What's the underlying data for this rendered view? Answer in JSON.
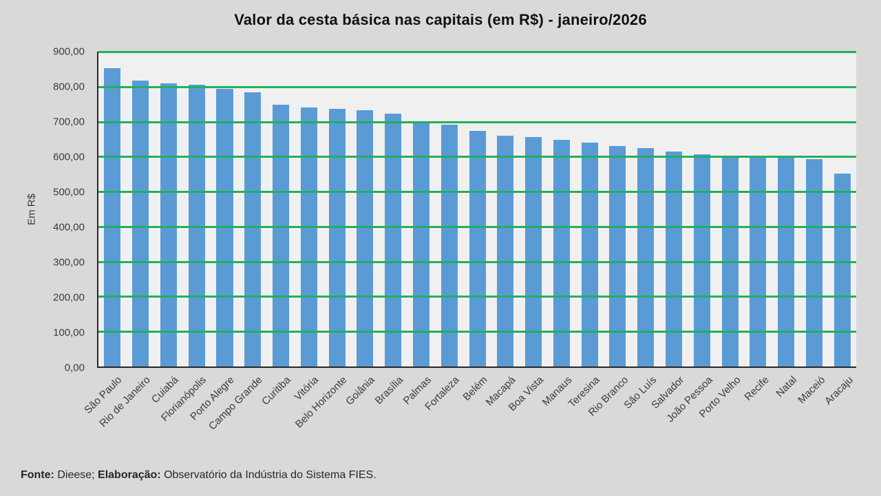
{
  "page": {
    "background_color": "#d9d9d9",
    "plot_background_color": "#f0f0f0",
    "axis_line_color": "#262626"
  },
  "chart": {
    "title": "Valor da cesta básica nas capitais (em R$) - janeiro/2026",
    "y_axis_title": "Em R$"
  },
  "footer": {
    "fonte_label": "Fonte:",
    "fonte_value": "Dieese;",
    "elaboracao_label": "Elaboração:",
    "elaboracao_value": "Observatório da Indústria do Sistema FIES."
  },
  "chart_data": {
    "type": "bar",
    "title": "Valor da cesta básica nas capitais (em R$) - janeiro/2026",
    "xlabel": "",
    "ylabel": "Em R$",
    "ylim": [
      0,
      900
    ],
    "ytick_step": 100,
    "ytick_labels": [
      "0,00",
      "100,00",
      "200,00",
      "300,00",
      "400,00",
      "500,00",
      "600,00",
      "700,00",
      "800,00",
      "900,00"
    ],
    "grid": "horizontal",
    "legend_position": "none",
    "bar_color": "#5b9bd5",
    "gridline_color": "#21b05c",
    "categories": [
      "São Paulo",
      "Rio de Janeiro",
      "Cuiabá",
      "Florianópolis",
      "Porto Alegre",
      "Campo Grande",
      "Curitiba",
      "Vitória",
      "Belo Horizonte",
      "Goiânia",
      "Brasília",
      "Palmas",
      "Fortaleza",
      "Belém",
      "Macapá",
      "Boa Vista",
      "Manaus",
      "Teresina",
      "Rio Branco",
      "São Luís",
      "Salvador",
      "João Pessoa",
      "Porto Velho",
      "Recife",
      "Natal",
      "Maceió",
      "Aracaju"
    ],
    "values": [
      853,
      817,
      810,
      806,
      794,
      783,
      748,
      741,
      737,
      733,
      723,
      701,
      692,
      673,
      660,
      655,
      648,
      641,
      630,
      624,
      614,
      606,
      602,
      601,
      598,
      592,
      552
    ]
  }
}
